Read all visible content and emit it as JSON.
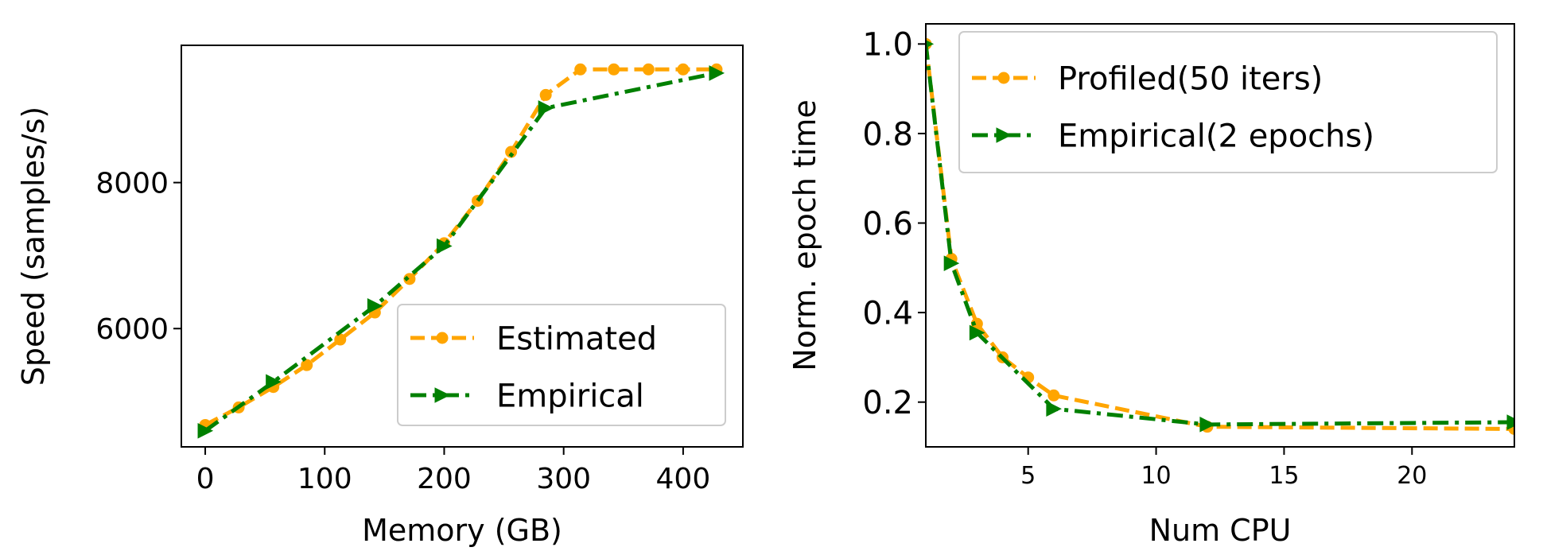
{
  "chart_data": [
    {
      "type": "line",
      "title": "",
      "xlabel": "Memory (GB)",
      "ylabel": "Speed (samples/s)",
      "xlim": [
        -20,
        450
      ],
      "ylim": [
        4380,
        9880
      ],
      "xticks": [
        0,
        100,
        200,
        300,
        400
      ],
      "yticks": [
        6000,
        8000
      ],
      "grid": false,
      "legend_position": "lower-right",
      "series": [
        {
          "name": "Estimated",
          "color": "#ffa500",
          "line_style": "dashed",
          "marker": "circle",
          "x": [
            0,
            28,
            57,
            85,
            113,
            142,
            171,
            200,
            228,
            256,
            285,
            314,
            342,
            371,
            400,
            428
          ],
          "y": [
            4680,
            4920,
            5200,
            5500,
            5850,
            6220,
            6680,
            7170,
            7750,
            8420,
            9200,
            9550,
            9550,
            9550,
            9550,
            9550
          ]
        },
        {
          "name": "Empirical",
          "color": "#008000",
          "line_style": "dashdot",
          "marker": "triangle-right",
          "x": [
            0,
            57,
            142,
            200,
            285,
            428
          ],
          "y": [
            4600,
            5270,
            6310,
            7130,
            9020,
            9500
          ]
        }
      ]
    },
    {
      "type": "line",
      "title": "",
      "xlabel": "Num CPU",
      "ylabel": "Norm. epoch time",
      "xlim": [
        1,
        24
      ],
      "ylim": [
        0.1,
        1.045
      ],
      "xticks": [
        5,
        10,
        15,
        20
      ],
      "yticks": [
        0.2,
        0.4,
        0.6,
        0.8,
        1.0
      ],
      "ytick_labels": [
        "0.2",
        "0.4",
        "0.6",
        "0.8",
        "1.0"
      ],
      "grid": false,
      "legend_position": "upper-right",
      "series": [
        {
          "name": "Profiled(50 iters)",
          "color": "#ffa500",
          "line_style": "dashed",
          "marker": "circle",
          "x": [
            1,
            2,
            3,
            4,
            5,
            6,
            12,
            24
          ],
          "y": [
            1.0,
            0.52,
            0.375,
            0.3,
            0.255,
            0.215,
            0.145,
            0.14
          ]
        },
        {
          "name": "Empirical(2 epochs)",
          "color": "#008000",
          "line_style": "dashdot",
          "marker": "triangle-right",
          "x": [
            1,
            2,
            3,
            6,
            12,
            24
          ],
          "y": [
            1.0,
            0.51,
            0.355,
            0.185,
            0.15,
            0.155
          ]
        }
      ]
    }
  ]
}
